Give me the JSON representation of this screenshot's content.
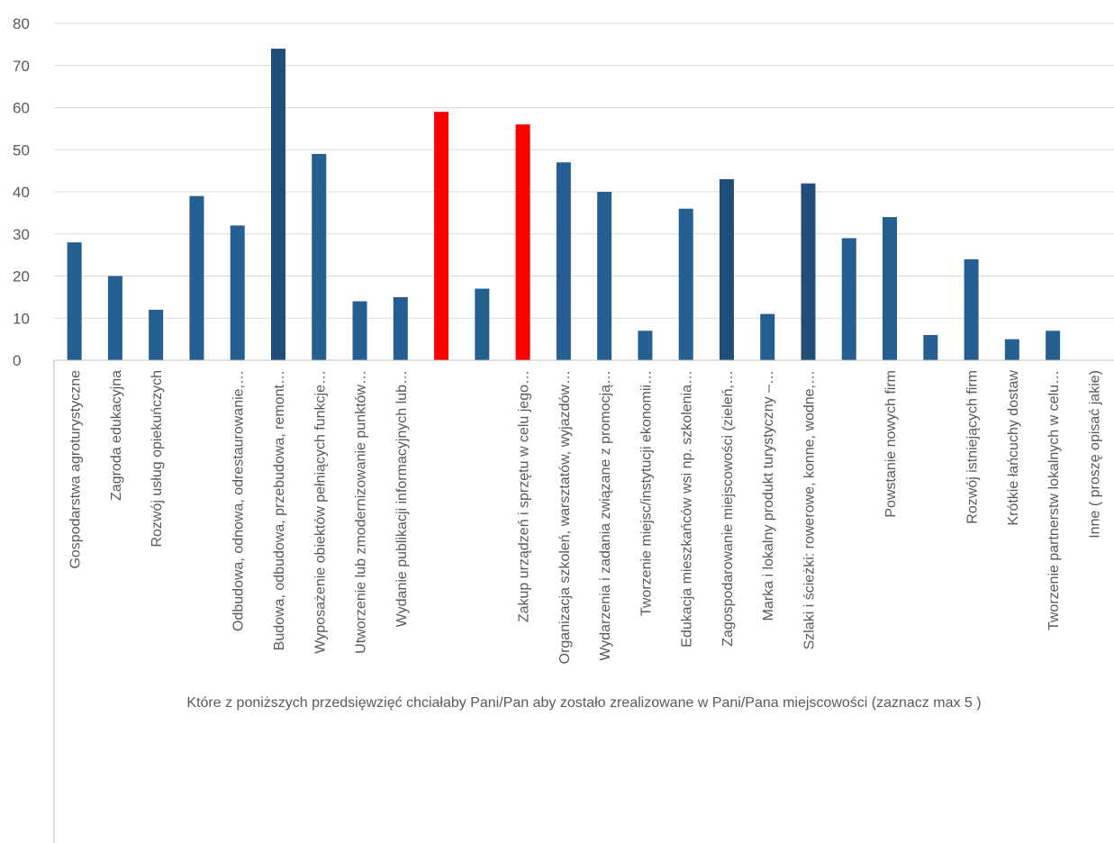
{
  "chart_data": {
    "type": "bar",
    "categories": [
      "Gospodarstwa agroturystyczne",
      "Zagroda edukacyjna",
      "Rozwój usług opiekuńczych",
      "",
      "Odbudowa, odnowa, odrestaurowanie,…",
      "Budowa, odbudowa, przebudowa, remont…",
      "Wyposażenie obiektów pełniących funkcje…",
      "Utworzenie lub zmodernizowanie punktów…",
      "Wydanie publikacji informacyjnych lub…",
      "",
      "",
      "Zakup urządzeń i sprzętu  w celu jego…",
      "Organizacja szkoleń, warsztatów, wyjazdów…",
      "Wydarzenia i zadania związane z promocją…",
      "Tworzenie miejsc/instytucji ekonomii…",
      "Edukacja mieszkańców wsi np. szkolenia…",
      "Zagospodarowanie miejscowości (zieleń,…",
      "Marka i lokalny produkt turystyczny –…",
      "Szlaki i ścieżki: rowerowe, konne, wodne,…",
      "",
      "Powstanie nowych firm",
      "",
      "Rozwój istniejących firm",
      "Krótkie łańcuchy dostaw",
      "Tworzenie partnerstw lokalnych w celu…",
      "Inne ( proszę opisać jakie)"
    ],
    "values": [
      28,
      20,
      12,
      39,
      32,
      74,
      49,
      14,
      15,
      59,
      17,
      56,
      47,
      40,
      7,
      36,
      43,
      11,
      42,
      29,
      34,
      6,
      24,
      5,
      7,
      0
    ],
    "bar_colors": [
      "#255e91",
      "#255e91",
      "#255e91",
      "#255e91",
      "#255e91",
      "#1f4e79",
      "#255e91",
      "#255e91",
      "#255e91",
      "#ff0000",
      "#255e91",
      "#ff0000",
      "#255e91",
      "#255e91",
      "#255e91",
      "#255e91",
      "#1f4e79",
      "#255e91",
      "#1f4e79",
      "#255e91",
      "#255e91",
      "#255e91",
      "#255e91",
      "#255e91",
      "#255e91",
      "#255e91"
    ],
    "ylim": [
      0,
      80
    ],
    "yticks": [
      0,
      10,
      20,
      30,
      40,
      50,
      60,
      70,
      80
    ],
    "grid": true,
    "xlabel": "Które z poniższych przedsięwzięć chciałaby Pani/Pan aby zostało zrealizowane w Pani/Pana miejscowości (zaznacz max 5 )",
    "colors": {
      "gridline": "#d9d9d9",
      "axis": "#bfbfbf",
      "text": "#595959"
    }
  }
}
